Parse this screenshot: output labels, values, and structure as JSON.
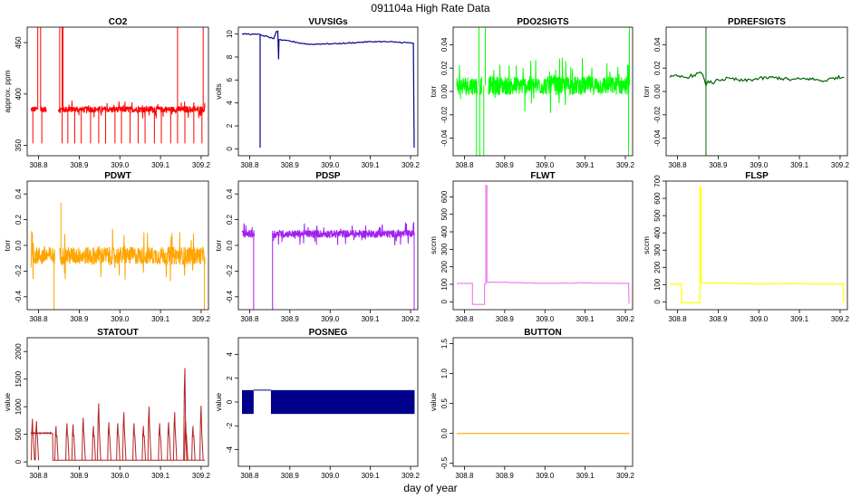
{
  "figure": {
    "title": "091104a   High Rate Data",
    "xlabel": "day of year"
  },
  "chart_data": [
    {
      "name": "CO2",
      "type": "line",
      "color": "#ff0000",
      "title": "CO2",
      "ylabel": "approx. ppm",
      "xlim": [
        308.772,
        309.218
      ],
      "ylim": [
        340,
        465
      ],
      "xticks": [
        308.8,
        308.9,
        309.0,
        309.1,
        309.2
      ],
      "xtick_labels": [
        "308.8",
        "308.9",
        "309.0",
        "309.1",
        "309.2"
      ],
      "yticks": [
        350,
        400,
        450
      ],
      "ytick_labels": [
        "350",
        "400",
        "450"
      ],
      "base": 385,
      "noise": 3,
      "start": 308.781,
      "end": 309.21,
      "gaps": [
        [
          308.797,
          308.804
        ],
        [
          308.82,
          308.848
        ]
      ],
      "spikes_down": [
        308.786,
        308.808,
        308.858,
        308.872,
        308.889,
        308.905,
        308.928,
        308.948,
        308.965,
        308.988,
        309.004,
        309.025,
        309.045,
        309.062,
        309.085,
        309.102,
        309.125,
        309.142,
        309.16,
        309.182,
        309.202
      ],
      "spike_down_value": 352,
      "spikes_up": [
        308.798,
        308.805,
        308.852,
        308.858,
        308.86,
        309.142,
        309.205
      ],
      "spike_up_value": 465
    },
    {
      "name": "VUVSIGs",
      "type": "line",
      "color": "#00008b",
      "title": "VUVSIGs",
      "ylabel": "volts",
      "xlim": [
        308.772,
        309.218
      ],
      "ylim": [
        -0.6,
        10.6
      ],
      "xticks": [
        308.8,
        308.9,
        309.0,
        309.1,
        309.2
      ],
      "xtick_labels": [
        "308.8",
        "308.9",
        "309.0",
        "309.1",
        "309.2"
      ],
      "yticks": [
        0,
        2,
        4,
        6,
        8,
        10
      ],
      "ytick_labels": [
        "0",
        "2",
        "4",
        "6",
        "8",
        "10"
      ],
      "points": [
        [
          308.781,
          10.0
        ],
        [
          308.79,
          10.02
        ],
        [
          308.81,
          9.98
        ],
        [
          308.826,
          9.95
        ],
        [
          308.826,
          0.1
        ],
        [
          308.826,
          9.95
        ],
        [
          308.86,
          9.6
        ],
        [
          308.866,
          10.2
        ],
        [
          308.87,
          10.25
        ],
        [
          308.872,
          7.8
        ],
        [
          308.873,
          9.5
        ],
        [
          308.88,
          9.45
        ],
        [
          308.9,
          9.4
        ],
        [
          308.92,
          9.25
        ],
        [
          308.95,
          9.1
        ],
        [
          308.98,
          9.15
        ],
        [
          309.0,
          9.15
        ],
        [
          309.04,
          9.2
        ],
        [
          309.08,
          9.3
        ],
        [
          309.12,
          9.35
        ],
        [
          309.16,
          9.3
        ],
        [
          309.19,
          9.25
        ],
        [
          309.207,
          9.2
        ],
        [
          309.209,
          0.1
        ]
      ],
      "noise": 0.05
    },
    {
      "name": "PDO2SIGTS",
      "type": "line",
      "color": "#00ff00",
      "title": "PDO2SIGTS",
      "ylabel": "torr",
      "xlim": [
        308.772,
        309.218
      ],
      "ylim": [
        -0.055,
        0.055
      ],
      "xticks": [
        308.8,
        308.9,
        309.0,
        309.1,
        309.2
      ],
      "xtick_labels": [
        "308.8",
        "308.9",
        "309.0",
        "309.1",
        "309.2"
      ],
      "yticks": [
        -0.04,
        -0.02,
        0.0,
        0.02,
        0.04
      ],
      "ytick_labels": [
        "-0.04",
        "-0.02",
        "0.00",
        "0.02",
        "0.04"
      ],
      "base": 0.005,
      "noise": 0.008,
      "start": 308.781,
      "end": 309.21,
      "gaps": [
        [
          308.832,
          308.838
        ],
        [
          308.843,
          308.86
        ]
      ],
      "spikes_down": [
        308.83,
        308.838,
        308.848,
        309.208
      ],
      "spike_down_value": -0.055,
      "spikes_up": [
        308.836,
        308.852,
        309.21
      ],
      "spike_up_value": 0.055
    },
    {
      "name": "PDREFSIGTS",
      "type": "line",
      "color": "#006400",
      "title": "PDREFSIGTS",
      "ylabel": "torr",
      "xlim": [
        308.772,
        309.218
      ],
      "ylim": [
        -0.055,
        0.055
      ],
      "xticks": [
        308.8,
        308.9,
        309.0,
        309.1,
        309.2
      ],
      "xtick_labels": [
        "308.8",
        "308.9",
        "309.0",
        "309.1",
        "309.2"
      ],
      "yticks": [
        -0.04,
        -0.02,
        0.0,
        0.02,
        0.04
      ],
      "ytick_labels": [
        "-0.04",
        "-0.02",
        "0.00",
        "0.02",
        "0.04"
      ],
      "points": [
        [
          308.781,
          0.012
        ],
        [
          308.8,
          0.013
        ],
        [
          308.82,
          0.012
        ],
        [
          308.84,
          0.014
        ],
        [
          308.858,
          0.016
        ],
        [
          308.866,
          0.01
        ],
        [
          308.87,
          0.005
        ],
        [
          308.875,
          0.009
        ],
        [
          308.885,
          0.007
        ],
        [
          308.9,
          0.01
        ],
        [
          308.93,
          0.011
        ],
        [
          308.96,
          0.009
        ],
        [
          309.0,
          0.011
        ],
        [
          309.04,
          0.012
        ],
        [
          309.08,
          0.01
        ],
        [
          309.12,
          0.011
        ],
        [
          309.16,
          0.009
        ],
        [
          309.19,
          0.012
        ],
        [
          309.21,
          0.012
        ]
      ],
      "noise": 0.0015,
      "vline": 308.87,
      "vline_range": [
        -0.055,
        0.055
      ]
    },
    {
      "name": "PDWT",
      "type": "line",
      "color": "#ffa500",
      "title": "PDWT",
      "ylabel": "torr",
      "xlim": [
        308.772,
        309.218
      ],
      "ylim": [
        -0.5,
        0.5
      ],
      "xticks": [
        308.8,
        308.9,
        309.0,
        309.1,
        309.2
      ],
      "xtick_labels": [
        "308.8",
        "308.9",
        "309.0",
        "309.1",
        "309.2"
      ],
      "yticks": [
        -0.4,
        -0.2,
        0.0,
        0.2,
        0.4
      ],
      "ytick_labels": [
        "-0.4",
        "-0.2",
        "0.0",
        "0.2",
        "0.4"
      ],
      "base": -0.08,
      "noise": 0.07,
      "start": 308.781,
      "end": 309.21,
      "gaps": [
        [
          308.84,
          308.852
        ]
      ],
      "spikes_down": [
        308.838,
        309.208
      ],
      "spike_down_value": -0.5,
      "spikes_up": [
        308.855
      ],
      "spike_up_value": 0.33
    },
    {
      "name": "PDSP",
      "type": "line",
      "color": "#a020f0",
      "title": "PDSP",
      "ylabel": "torr",
      "xlim": [
        308.772,
        309.218
      ],
      "ylim": [
        -0.5,
        0.5
      ],
      "xticks": [
        308.8,
        308.9,
        309.0,
        309.1,
        309.2
      ],
      "xtick_labels": [
        "308.8",
        "308.9",
        "309.0",
        "309.1",
        "309.2"
      ],
      "yticks": [
        -0.4,
        -0.2,
        0.0,
        0.2,
        0.4
      ],
      "ytick_labels": [
        "-0.4",
        "-0.2",
        "0.0",
        "0.2",
        "0.4"
      ],
      "base": 0.09,
      "noise": 0.03,
      "start": 308.781,
      "end": 309.21,
      "gaps": [
        [
          308.812,
          308.856
        ]
      ],
      "spikes_down": [
        308.81,
        308.857,
        309.209
      ],
      "spike_down_value": -0.5,
      "spikes_up": [
        309.208
      ],
      "spike_up_value": 0.18
    },
    {
      "name": "FLWT",
      "type": "line",
      "color": "#ee82ee",
      "title": "FLWT",
      "ylabel": "sccm",
      "xlim": [
        308.772,
        309.218
      ],
      "ylim": [
        -45,
        690
      ],
      "xticks": [
        308.8,
        308.9,
        309.0,
        309.1,
        309.2
      ],
      "xtick_labels": [
        "308.8",
        "308.9",
        "309.0",
        "309.1",
        "309.2"
      ],
      "yticks": [
        0,
        100,
        200,
        300,
        400,
        500,
        600
      ],
      "ytick_labels": [
        "0",
        "100",
        "200",
        "300",
        "400",
        "500",
        "600"
      ],
      "points": [
        [
          308.781,
          105
        ],
        [
          308.82,
          105
        ],
        [
          308.82,
          -15
        ],
        [
          308.85,
          -15
        ],
        [
          308.85,
          100
        ],
        [
          308.853,
          100
        ],
        [
          308.853,
          665
        ],
        [
          308.856,
          665
        ],
        [
          308.856,
          112
        ],
        [
          308.9,
          112
        ],
        [
          308.95,
          108
        ],
        [
          309.0,
          106
        ],
        [
          309.1,
          108
        ],
        [
          309.15,
          106
        ],
        [
          309.2,
          106
        ],
        [
          309.208,
          106
        ],
        [
          309.209,
          -10
        ]
      ],
      "noise": 1.5
    },
    {
      "name": "FLSP",
      "type": "line",
      "color": "#ffff00",
      "title": "FLSP",
      "ylabel": "sccm",
      "xlim": [
        308.772,
        309.218
      ],
      "ylim": [
        -45,
        700
      ],
      "xticks": [
        308.8,
        308.9,
        309.0,
        309.1,
        309.2
      ],
      "xtick_labels": [
        "308.8",
        "308.9",
        "309.0",
        "309.1",
        "309.2"
      ],
      "yticks": [
        0,
        100,
        200,
        300,
        400,
        500,
        600,
        700
      ],
      "ytick_labels": [
        "0",
        "100",
        "200",
        "300",
        "400",
        "500",
        "600",
        "700"
      ],
      "points": [
        [
          308.781,
          103
        ],
        [
          308.81,
          103
        ],
        [
          308.81,
          -5
        ],
        [
          308.855,
          -5
        ],
        [
          308.855,
          665
        ],
        [
          308.858,
          665
        ],
        [
          308.858,
          110
        ],
        [
          308.9,
          110
        ],
        [
          308.95,
          106
        ],
        [
          309.0,
          104
        ],
        [
          309.1,
          106
        ],
        [
          309.15,
          104
        ],
        [
          309.2,
          104
        ],
        [
          309.208,
          104
        ],
        [
          309.209,
          -5
        ]
      ],
      "noise": 1.5
    },
    {
      "name": "STATOUT",
      "type": "line",
      "color": "#b22222",
      "title": "STATOUT",
      "ylabel": "value",
      "xlim": [
        308.772,
        309.218
      ],
      "ylim": [
        -80,
        2250
      ],
      "xticks": [
        308.8,
        308.9,
        309.0,
        309.1,
        309.2
      ],
      "xtick_labels": [
        "308.8",
        "308.9",
        "309.0",
        "309.1",
        "309.2"
      ],
      "yticks": [
        0,
        500,
        1000,
        1500,
        2000
      ],
      "ytick_labels": [
        "0",
        "500",
        "1000",
        "1500",
        "2000"
      ],
      "base": 30,
      "start": 308.781,
      "end": 309.21,
      "plateau": [
        [
          308.781,
          308.835,
          520
        ]
      ],
      "pulses": [
        308.785,
        308.795,
        308.843,
        308.87,
        308.885,
        308.91,
        308.935,
        308.948,
        308.973,
        308.995,
        309.01,
        309.035,
        309.058,
        309.072,
        309.098,
        309.12,
        309.135,
        309.16,
        309.162,
        309.18,
        309.2
      ],
      "pulse_peaks": [
        780,
        740,
        650,
        700,
        680,
        800,
        650,
        1060,
        720,
        700,
        900,
        700,
        650,
        1000,
        700,
        720,
        900,
        1700,
        750,
        650,
        1020
      ]
    },
    {
      "name": "POSNEG",
      "type": "bars",
      "color": "#00008b",
      "title": "POSNEG",
      "ylabel": "value",
      "xlim": [
        308.772,
        309.218
      ],
      "ylim": [
        -5.4,
        5.4
      ],
      "xticks": [
        308.8,
        308.9,
        309.0,
        309.1,
        309.2
      ],
      "xtick_labels": [
        "308.8",
        "308.9",
        "309.0",
        "309.1",
        "309.2"
      ],
      "yticks": [
        -4,
        -2,
        0,
        2,
        4
      ],
      "ytick_labels": [
        "-4",
        "-2",
        "0",
        "2",
        "4"
      ],
      "segments": [
        [
          308.781,
          308.81
        ],
        [
          308.853,
          309.21
        ]
      ],
      "range": [
        -1,
        1
      ],
      "outline_gap": [
        308.81,
        308.853
      ]
    },
    {
      "name": "BUTTON",
      "type": "line",
      "color": "#ffa500",
      "title": "BUTTON",
      "ylabel": "value",
      "xlim": [
        308.772,
        309.218
      ],
      "ylim": [
        -0.55,
        1.6
      ],
      "xticks": [
        308.8,
        308.9,
        309.0,
        309.1,
        309.2
      ],
      "xtick_labels": [
        "308.8",
        "308.9",
        "309.0",
        "309.1",
        "309.2"
      ],
      "yticks": [
        -0.5,
        0.0,
        0.5,
        1.0,
        1.5
      ],
      "ytick_labels": [
        "-0.5",
        "0.0",
        "0.5",
        "1.0",
        "1.5"
      ],
      "points": [
        [
          308.781,
          0
        ],
        [
          309.21,
          0
        ]
      ],
      "noise": 0
    }
  ]
}
